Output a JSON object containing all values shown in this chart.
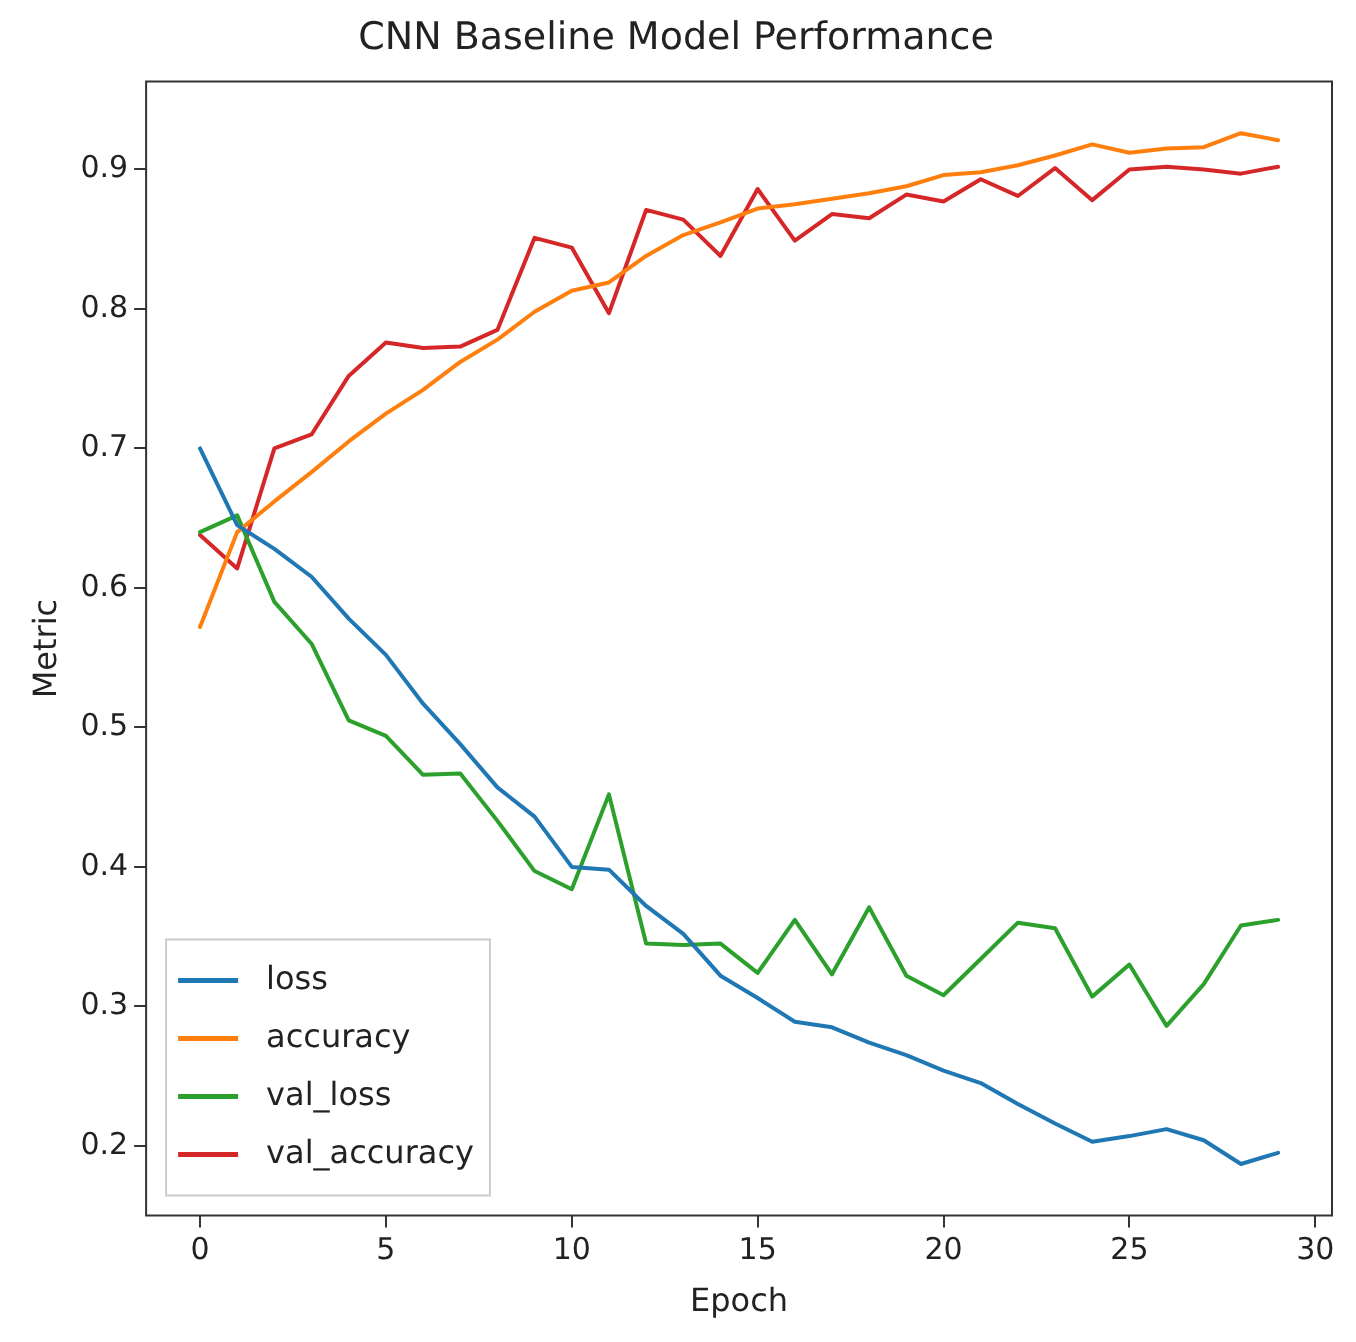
{
  "chart_data": {
    "type": "line",
    "title": "CNN Baseline Model Performance",
    "xlabel": "Epoch",
    "ylabel": "Metric",
    "x": [
      0,
      1,
      2,
      3,
      4,
      5,
      6,
      7,
      8,
      9,
      10,
      11,
      12,
      13,
      14,
      15,
      16,
      17,
      18,
      19,
      20,
      21,
      22,
      23,
      24,
      25,
      26,
      27,
      28,
      29
    ],
    "series": [
      {
        "name": "loss",
        "color": "#1f77b4",
        "values": [
          0.7,
          0.645,
          0.628,
          0.608,
          0.578,
          0.552,
          0.517,
          0.488,
          0.457,
          0.436,
          0.4,
          0.398,
          0.372,
          0.352,
          0.322,
          0.306,
          0.289,
          0.285,
          0.274,
          0.265,
          0.254,
          0.245,
          0.23,
          0.216,
          0.203,
          0.207,
          0.212,
          0.204,
          0.187,
          0.195
        ]
      },
      {
        "name": "accuracy",
        "color": "#ff7f0e",
        "values": [
          0.572,
          0.64,
          0.662,
          0.683,
          0.705,
          0.725,
          0.742,
          0.762,
          0.778,
          0.798,
          0.813,
          0.819,
          0.838,
          0.853,
          0.862,
          0.872,
          0.875,
          0.879,
          0.883,
          0.888,
          0.896,
          0.898,
          0.903,
          0.91,
          0.918,
          0.912,
          0.915,
          0.916,
          0.926,
          0.921
        ]
      },
      {
        "name": "val_loss",
        "color": "#2ca02c",
        "values": [
          0.64,
          0.652,
          0.59,
          0.56,
          0.505,
          0.494,
          0.466,
          0.467,
          0.433,
          0.397,
          0.384,
          0.452,
          0.345,
          0.344,
          0.345,
          0.324,
          0.362,
          0.323,
          0.371,
          0.322,
          0.308,
          0.334,
          0.36,
          0.356,
          0.307,
          0.33,
          0.286,
          0.316,
          0.358,
          0.362
        ]
      },
      {
        "name": "val_accuracy",
        "color": "#d62728",
        "values": [
          0.638,
          0.614,
          0.7,
          0.71,
          0.752,
          0.776,
          0.772,
          0.773,
          0.785,
          0.851,
          0.844,
          0.797,
          0.871,
          0.864,
          0.838,
          0.886,
          0.849,
          0.868,
          0.865,
          0.882,
          0.877,
          0.893,
          0.881,
          0.901,
          0.878,
          0.9,
          0.902,
          0.9,
          0.897,
          0.902
        ]
      }
    ],
    "xlim": [
      -1.45,
      30.45
    ],
    "xticks": [
      0,
      5,
      10,
      15,
      20,
      25,
      30
    ],
    "ylim": [
      0.15,
      0.963
    ],
    "yticks": [
      0.2,
      0.3,
      0.4,
      0.5,
      0.6,
      0.7,
      0.8,
      0.9
    ],
    "grid": false,
    "legend": "bottom left",
    "marker": "none",
    "line_style": "solid"
  }
}
